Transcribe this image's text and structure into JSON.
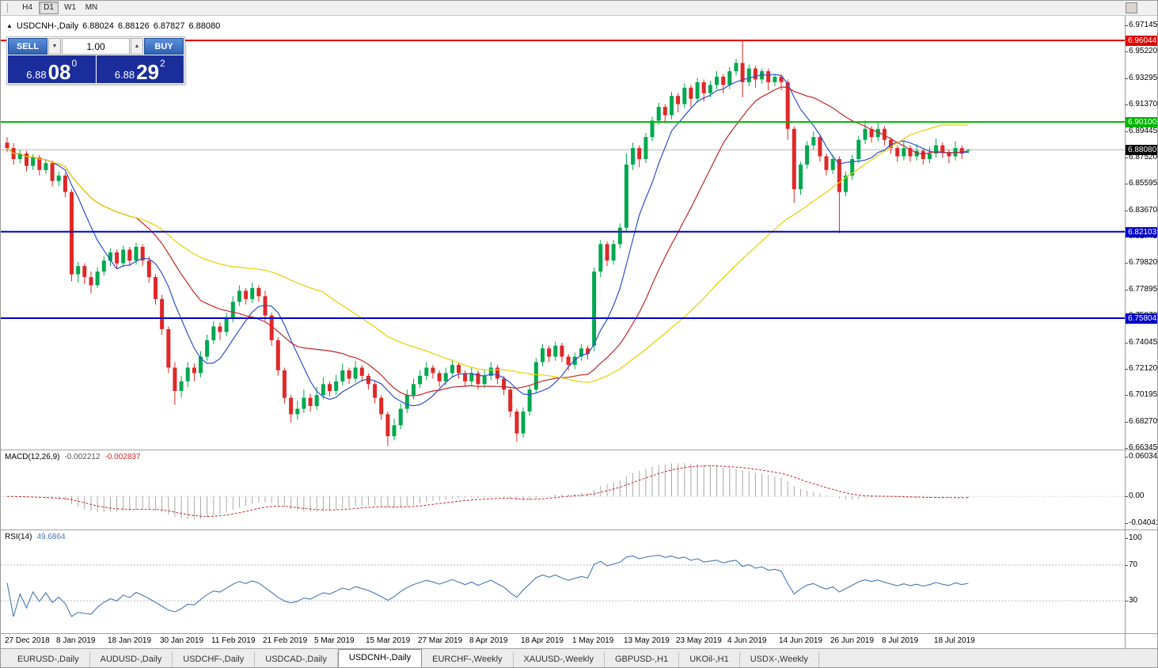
{
  "toolbar": {
    "timeframes": [
      {
        "label": "H4",
        "active": false
      },
      {
        "label": "D1",
        "active": true
      },
      {
        "label": "W1",
        "active": false
      },
      {
        "label": "MN",
        "active": false
      }
    ]
  },
  "chart_title": {
    "icon": "▲",
    "symbol": "USDCNH-,Daily",
    "open": "6.88024",
    "high": "6.88126",
    "low": "6.87827",
    "close": "6.88080"
  },
  "one_click": {
    "sell_label": "SELL",
    "buy_label": "BUY",
    "volume": "1.00",
    "spin_down_icon": "▼",
    "spin_up_icon": "▲",
    "sell_price_prefix": "6.88",
    "sell_price_big": "08",
    "sell_price_sup": "0",
    "buy_price_prefix": "6.88",
    "buy_price_big": "29",
    "buy_price_sup": "2",
    "theme": {
      "button_blue": "#3a76c8",
      "price_panel_blue": "#1b2d9b"
    }
  },
  "chart_data": {
    "type": "candlestick",
    "symbol": "USDCNH",
    "timeframe": "Daily",
    "colors": {
      "up": "#00a84f",
      "down": "#e02828"
    },
    "price_axis": {
      "max": 6.97145,
      "min": 6.66345,
      "ticks": [
        6.97145,
        6.9522,
        6.93295,
        6.9137,
        6.89445,
        6.8752,
        6.85595,
        6.8367,
        6.81745,
        6.7982,
        6.77895,
        6.7597,
        6.74045,
        6.7212,
        6.70195,
        6.6827,
        6.66345
      ]
    },
    "levels": [
      {
        "name": "resistance-line",
        "price": 6.96044,
        "label": "6.96044",
        "color": "#e00000",
        "width": 2
      },
      {
        "name": "resistance-line-2",
        "price": 6.901,
        "label": "6.90100",
        "color": "#00b400",
        "width": 2
      },
      {
        "name": "bid",
        "price": 6.8808,
        "label": "6.88080",
        "color": "#b4b4b4",
        "tag": "#000000",
        "width": 1
      },
      {
        "name": "support-line",
        "price": 6.82103,
        "label": "6.82103",
        "color": "#0000c8",
        "width": 2
      },
      {
        "name": "support-line-2",
        "price": 6.75804,
        "label": "6.75804",
        "color": "#0000c8",
        "width": 2
      }
    ],
    "moving_averages": [
      {
        "period": 8,
        "color": "#3050c8"
      },
      {
        "period": 21,
        "color": "#c02828"
      },
      {
        "period": 50,
        "color": "#e6d200"
      }
    ],
    "macd": {
      "label": "MACD(12,26,9)",
      "fast": 12,
      "slow": 26,
      "signal_period": 9,
      "value_main": "-0.002212",
      "value_signal": "-0.002837",
      "scale_max": 0.060342,
      "scale_min": -0.040415,
      "axis_labels": [
        {
          "v": 0.060342,
          "t": "0.060342"
        },
        {
          "v": 0,
          "t": "0.00"
        },
        {
          "v": -0.040415,
          "t": "-0.040415"
        }
      ],
      "colors": {
        "histogram": "#a8a8a8",
        "signal": "#c03030"
      }
    },
    "rsi": {
      "label": "RSI(14)",
      "period": 14,
      "value": "49.6864",
      "levels": [
        70,
        30
      ],
      "axis_labels": [
        {
          "v": 100,
          "t": "100"
        },
        {
          "v": 70,
          "t": "70"
        },
        {
          "v": 30,
          "t": "30"
        }
      ],
      "color": "#4878b0"
    },
    "x_labels": [
      {
        "index": 0,
        "label": "27 Dec 2018"
      },
      {
        "index": 8,
        "label": "8 Jan 2019"
      },
      {
        "index": 16,
        "label": "18 Jan 2019"
      },
      {
        "index": 24,
        "label": "30 Jan 2019"
      },
      {
        "index": 32,
        "label": "11 Feb 2019"
      },
      {
        "index": 40,
        "label": "21 Feb 2019"
      },
      {
        "index": 48,
        "label": "5 Mar 2019"
      },
      {
        "index": 56,
        "label": "15 Mar 2019"
      },
      {
        "index": 64,
        "label": "27 Mar 2019"
      },
      {
        "index": 72,
        "label": "8 Apr 2019"
      },
      {
        "index": 80,
        "label": "18 Apr 2019"
      },
      {
        "index": 88,
        "label": "1 May 2019"
      },
      {
        "index": 96,
        "label": "13 May 2019"
      },
      {
        "index": 104,
        "label": "23 May 2019"
      },
      {
        "index": 112,
        "label": "4 Jun 2019"
      },
      {
        "index": 120,
        "label": "14 Jun 2019"
      },
      {
        "index": 128,
        "label": "26 Jun 2019"
      },
      {
        "index": 136,
        "label": "8 Jul 2019"
      },
      {
        "index": 144,
        "label": "18 Jul 2019"
      }
    ],
    "candles": [
      [
        6.886,
        6.89,
        6.879,
        6.882
      ],
      [
        6.882,
        6.8855,
        6.87,
        6.874
      ],
      [
        6.874,
        6.8805,
        6.871,
        6.878
      ],
      [
        6.878,
        6.88,
        6.865,
        6.869
      ],
      [
        6.869,
        6.8775,
        6.866,
        6.875
      ],
      [
        6.875,
        6.877,
        6.862,
        6.866
      ],
      [
        6.866,
        6.874,
        6.863,
        6.871
      ],
      [
        6.871,
        6.873,
        6.854,
        6.858
      ],
      [
        6.858,
        6.865,
        6.854,
        6.862
      ],
      [
        6.862,
        6.864,
        6.846,
        6.85
      ],
      [
        6.85,
        6.852,
        6.785,
        6.79
      ],
      [
        6.79,
        6.799,
        6.784,
        6.796
      ],
      [
        6.796,
        6.798,
        6.783,
        6.788
      ],
      [
        6.788,
        6.792,
        6.776,
        6.782
      ],
      [
        6.782,
        6.795,
        6.78,
        6.792
      ],
      [
        6.792,
        6.803,
        6.789,
        6.8
      ],
      [
        6.8,
        6.809,
        6.796,
        6.806
      ],
      [
        6.806,
        6.808,
        6.794,
        6.798
      ],
      [
        6.798,
        6.811,
        6.795,
        6.808
      ],
      [
        6.808,
        6.81,
        6.796,
        6.8
      ],
      [
        6.8,
        6.813,
        6.797,
        6.81
      ],
      [
        6.81,
        6.812,
        6.796,
        6.8
      ],
      [
        6.8,
        6.803,
        6.784,
        6.788
      ],
      [
        6.788,
        6.79,
        6.768,
        6.772
      ],
      [
        6.772,
        6.775,
        6.746,
        6.75
      ],
      [
        6.75,
        6.752,
        6.718,
        6.722
      ],
      [
        6.722,
        6.726,
        6.695,
        6.705
      ],
      [
        6.705,
        6.716,
        6.7,
        6.712
      ],
      [
        6.712,
        6.726,
        6.708,
        6.722
      ],
      [
        6.722,
        6.725,
        6.712,
        6.718
      ],
      [
        6.718,
        6.734,
        6.715,
        6.73
      ],
      [
        6.73,
        6.746,
        6.727,
        6.742
      ],
      [
        6.742,
        6.756,
        6.739,
        6.752
      ],
      [
        6.752,
        6.755,
        6.742,
        6.748
      ],
      [
        6.748,
        6.762,
        6.745,
        6.758
      ],
      [
        6.758,
        6.774,
        6.755,
        6.77
      ],
      [
        6.77,
        6.782,
        6.767,
        6.778
      ],
      [
        6.778,
        6.78,
        6.768,
        6.772
      ],
      [
        6.772,
        6.784,
        6.769,
        6.78
      ],
      [
        6.78,
        6.782,
        6.77,
        6.774
      ],
      [
        6.774,
        6.778,
        6.756,
        6.76
      ],
      [
        6.76,
        6.762,
        6.738,
        6.742
      ],
      [
        6.742,
        6.744,
        6.716,
        6.72
      ],
      [
        6.72,
        6.722,
        6.696,
        6.7
      ],
      [
        6.7,
        6.702,
        6.682,
        6.688
      ],
      [
        6.688,
        6.698,
        6.684,
        6.692
      ],
      [
        6.692,
        6.706,
        6.689,
        6.7
      ],
      [
        6.7,
        6.703,
        6.69,
        6.694
      ],
      [
        6.694,
        6.708,
        6.691,
        6.702
      ],
      [
        6.702,
        6.715,
        6.699,
        6.71
      ],
      [
        6.71,
        6.712,
        6.701,
        6.705
      ],
      [
        6.705,
        6.717,
        6.702,
        6.712
      ],
      [
        6.712,
        6.725,
        6.709,
        6.72
      ],
      [
        6.72,
        6.722,
        6.71,
        6.714
      ],
      [
        6.714,
        6.727,
        6.711,
        6.722
      ],
      [
        6.722,
        6.724,
        6.712,
        6.716
      ],
      [
        6.716,
        6.718,
        6.706,
        6.71
      ],
      [
        6.71,
        6.712,
        6.696,
        6.7
      ],
      [
        6.7,
        6.702,
        6.684,
        6.688
      ],
      [
        6.688,
        6.69,
        6.665,
        6.672
      ],
      [
        6.672,
        6.685,
        6.669,
        6.68
      ],
      [
        6.68,
        6.696,
        6.677,
        6.692
      ],
      [
        6.692,
        6.706,
        6.689,
        6.702
      ],
      [
        6.702,
        6.714,
        6.699,
        6.71
      ],
      [
        6.71,
        6.72,
        6.707,
        6.716
      ],
      [
        6.716,
        6.726,
        6.713,
        6.722
      ],
      [
        6.722,
        6.724,
        6.714,
        6.718
      ],
      [
        6.718,
        6.72,
        6.708,
        6.712
      ],
      [
        6.712,
        6.722,
        6.709,
        6.718
      ],
      [
        6.718,
        6.728,
        6.715,
        6.724
      ],
      [
        6.724,
        6.726,
        6.714,
        6.718
      ],
      [
        6.718,
        6.72,
        6.708,
        6.712
      ],
      [
        6.712,
        6.722,
        6.709,
        6.718
      ],
      [
        6.718,
        6.72,
        6.706,
        6.71
      ],
      [
        6.71,
        6.72,
        6.707,
        6.716
      ],
      [
        6.716,
        6.726,
        6.713,
        6.722
      ],
      [
        6.722,
        6.724,
        6.71,
        6.714
      ],
      [
        6.714,
        6.716,
        6.702,
        6.706
      ],
      [
        6.706,
        6.708,
        6.686,
        6.69
      ],
      [
        6.69,
        6.692,
        6.668,
        6.674
      ],
      [
        6.674,
        6.693,
        6.671,
        6.69
      ],
      [
        6.69,
        6.709,
        6.687,
        6.706
      ],
      [
        6.706,
        6.729,
        6.703,
        6.726
      ],
      [
        6.726,
        6.739,
        6.723,
        6.736
      ],
      [
        6.736,
        6.738,
        6.726,
        6.73
      ],
      [
        6.73,
        6.741,
        6.727,
        6.738
      ],
      [
        6.738,
        6.74,
        6.726,
        6.73
      ],
      [
        6.73,
        6.732,
        6.72,
        6.724
      ],
      [
        6.724,
        6.733,
        6.721,
        6.73
      ],
      [
        6.73,
        6.739,
        6.727,
        6.736
      ],
      [
        6.736,
        6.738,
        6.728,
        6.732
      ],
      [
        6.738,
        6.795,
        6.734,
        6.792
      ],
      [
        6.792,
        6.815,
        6.788,
        6.812
      ],
      [
        6.812,
        6.814,
        6.796,
        6.8
      ],
      [
        6.8,
        6.815,
        6.797,
        6.812
      ],
      [
        6.812,
        6.827,
        6.809,
        6.824
      ],
      [
        6.824,
        6.878,
        6.821,
        6.87
      ],
      [
        6.87,
        6.886,
        6.866,
        6.882
      ],
      [
        6.882,
        6.884,
        6.868,
        6.874
      ],
      [
        6.874,
        6.893,
        6.871,
        6.89
      ],
      [
        6.89,
        6.905,
        6.887,
        6.902
      ],
      [
        6.902,
        6.915,
        6.899,
        6.912
      ],
      [
        6.912,
        6.914,
        6.9,
        6.906
      ],
      [
        6.906,
        6.923,
        6.903,
        6.92
      ],
      [
        6.92,
        6.922,
        6.908,
        6.914
      ],
      [
        6.914,
        6.929,
        6.911,
        6.926
      ],
      [
        6.926,
        6.928,
        6.912,
        6.918
      ],
      [
        6.918,
        6.933,
        6.915,
        6.93
      ],
      [
        6.93,
        6.932,
        6.916,
        6.922
      ],
      [
        6.922,
        6.931,
        6.919,
        6.928
      ],
      [
        6.928,
        6.938,
        6.925,
        6.934
      ],
      [
        6.934,
        6.936,
        6.922,
        6.928
      ],
      [
        6.928,
        6.941,
        6.925,
        6.938
      ],
      [
        6.938,
        6.947,
        6.935,
        6.944
      ],
      [
        6.944,
        6.961,
        6.919,
        6.93
      ],
      [
        6.93,
        6.943,
        6.927,
        6.94
      ],
      [
        6.94,
        6.942,
        6.926,
        6.932
      ],
      [
        6.932,
        6.94,
        6.929,
        6.938
      ],
      [
        6.938,
        6.94,
        6.924,
        6.93
      ],
      [
        6.93,
        6.936,
        6.927,
        6.934
      ],
      [
        6.934,
        6.936,
        6.924,
        6.93
      ],
      [
        6.93,
        6.932,
        6.888,
        6.896
      ],
      [
        6.896,
        6.898,
        6.842,
        6.852
      ],
      [
        6.852,
        6.872,
        6.848,
        6.87
      ],
      [
        6.87,
        6.887,
        6.867,
        6.884
      ],
      [
        6.884,
        6.894,
        6.881,
        6.89
      ],
      [
        6.89,
        6.892,
        6.872,
        6.876
      ],
      [
        6.876,
        6.878,
        6.862,
        6.866
      ],
      [
        6.866,
        6.877,
        6.863,
        6.874
      ],
      [
        6.874,
        6.876,
        6.82,
        6.85
      ],
      [
        6.85,
        6.865,
        6.847,
        6.862
      ],
      [
        6.862,
        6.877,
        6.859,
        6.874
      ],
      [
        6.874,
        6.891,
        6.871,
        6.888
      ],
      [
        6.888,
        6.902,
        6.885,
        6.896
      ],
      [
        6.896,
        6.898,
        6.886,
        6.89
      ],
      [
        6.89,
        6.901,
        6.887,
        6.896
      ],
      [
        6.896,
        6.898,
        6.884,
        6.888
      ],
      [
        6.888,
        6.89,
        6.878,
        6.882
      ],
      [
        6.882,
        6.884,
        6.872,
        6.876
      ],
      [
        6.876,
        6.887,
        6.873,
        6.882
      ],
      [
        6.882,
        6.884,
        6.872,
        6.876
      ],
      [
        6.876,
        6.885,
        6.873,
        6.88
      ],
      [
        6.88,
        6.882,
        6.87,
        6.874
      ],
      [
        6.874,
        6.883,
        6.871,
        6.878
      ],
      [
        6.878,
        6.889,
        6.875,
        6.884
      ],
      [
        6.884,
        6.886,
        6.875,
        6.879
      ],
      [
        6.879,
        6.881,
        6.871,
        6.876
      ],
      [
        6.876,
        6.887,
        6.873,
        6.882
      ],
      [
        6.882,
        6.884,
        6.874,
        6.878
      ],
      [
        6.8802,
        6.8813,
        6.8783,
        6.8808
      ]
    ]
  },
  "tabs": [
    {
      "label": "EURUSD-,Daily",
      "active": false
    },
    {
      "label": "AUDUSD-,Daily",
      "active": false
    },
    {
      "label": "USDCHF-,Daily",
      "active": false
    },
    {
      "label": "USDCAD-,Daily",
      "active": false
    },
    {
      "label": "USDCNH-,Daily",
      "active": true
    },
    {
      "label": "EURCHF-,Weekly",
      "active": false
    },
    {
      "label": "XAUUSD-,Weekly",
      "active": false
    },
    {
      "label": "GBPUSD-,H1",
      "active": false
    },
    {
      "label": "UKOil-,H1",
      "active": false
    },
    {
      "label": "USDX-,Weekly",
      "active": false
    }
  ]
}
